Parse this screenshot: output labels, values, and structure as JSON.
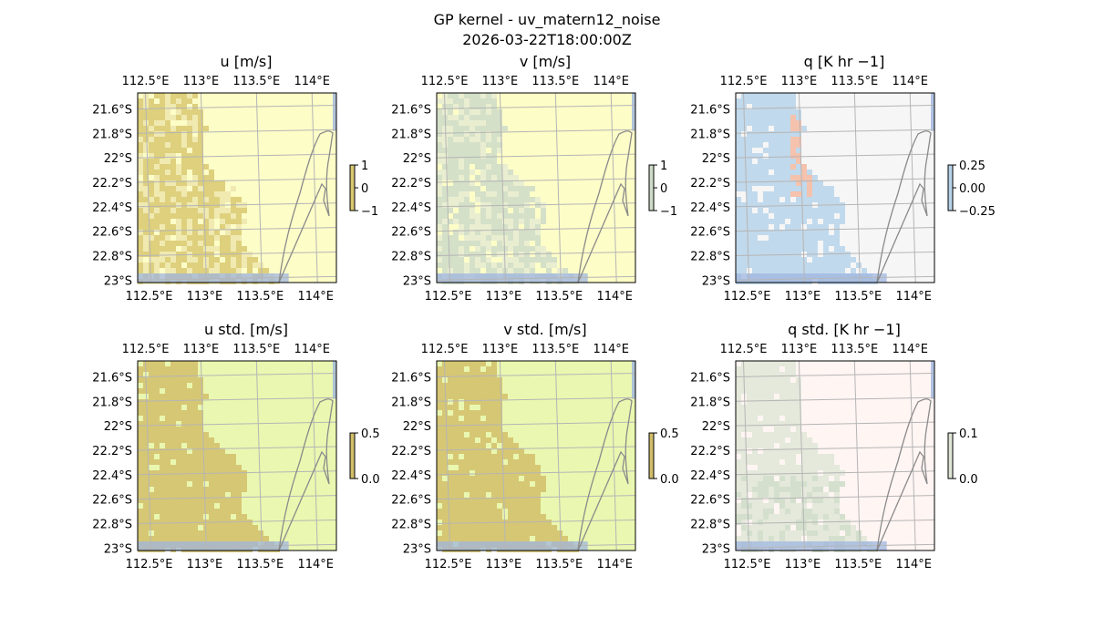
{
  "figure": {
    "title": "GP kernel - uv_matern12_noise",
    "subtitle": "2026-03-22T18:00:00Z"
  },
  "axes": {
    "lon_ticks": [
      "112.5°E",
      "113°E",
      "113.5°E",
      "114°E"
    ],
    "lat_ticks": [
      "21.6°S",
      "21.8°S",
      "22°S",
      "22.2°S",
      "22.4°S",
      "22.6°S",
      "22.8°S",
      "23°S"
    ],
    "lon_values": [
      112.5,
      113.0,
      113.5,
      114.0
    ],
    "lat_values": [
      -21.6,
      -21.8,
      -22.0,
      -22.2,
      -22.4,
      -22.6,
      -22.8,
      -23.0
    ],
    "lon_range": [
      112.43,
      114.22
    ],
    "lat_range": [
      -21.47,
      -23.02
    ],
    "grid": true
  },
  "panels": [
    {
      "title": "u [m/s]",
      "colorbar_ticks": [
        "1",
        "0",
        "−1"
      ],
      "colors": {
        "background": "#fdfdc8",
        "field": "#d8c870",
        "field_light": "#ede6ad",
        "water": "#9fb5e0"
      }
    },
    {
      "title": "v [m/s]",
      "colorbar_ticks": [
        "1",
        "0",
        "−1"
      ],
      "colors": {
        "background": "#fdfdc8",
        "field": "#cedbc8",
        "field_light": "#e6ebd2",
        "water": "#9fb5e0"
      }
    },
    {
      "title": "q [K hr −1]",
      "colorbar_ticks": [
        "0.25",
        "0.00",
        "−0.25"
      ],
      "colors": {
        "background": "#f6f6f6",
        "field": "#b7d3ea",
        "field_accent": "#f4b8a0",
        "water": "#9fb5e0"
      }
    },
    {
      "title": "u std. [m/s]",
      "colorbar_ticks": [
        "0.5",
        "0.0"
      ],
      "colors": {
        "background": "#eaf7b0",
        "field": "#d2be6a",
        "water": "#9fb5e0"
      }
    },
    {
      "title": "v std. [m/s]",
      "colorbar_ticks": [
        "0.5",
        "0.0"
      ],
      "colors": {
        "background": "#eaf7b0",
        "field": "#d2be6a",
        "water": "#9fb5e0"
      }
    },
    {
      "title": "q std. [K hr −1]",
      "colorbar_ticks": [
        "0.1",
        "0.0"
      ],
      "colors": {
        "background": "#fff5f3",
        "field": "#dfe6d6",
        "field_dark": "#cddcc5",
        "water": "#9fb5e0"
      }
    }
  ]
}
